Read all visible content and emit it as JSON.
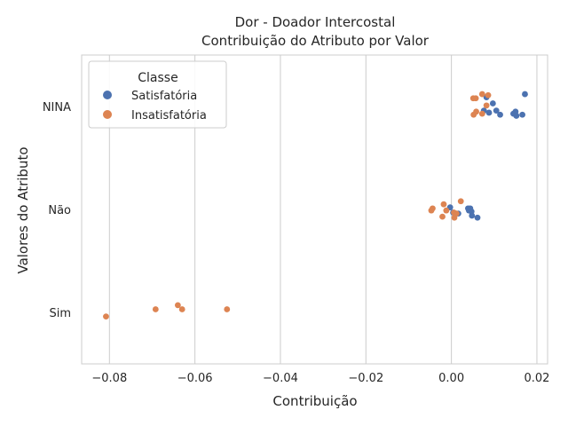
{
  "chart_data": {
    "type": "scatter",
    "title": "Dor - Doador Intercostal",
    "subtitle": "Contribuição do Atributo por Valor",
    "xlabel": "Contribuição",
    "ylabel": "Valores do Atributo",
    "xlim": [
      -0.0865,
      0.0225
    ],
    "xticks": [
      "−0.08",
      "−0.06",
      "−0.04",
      "−0.02",
      "0.00",
      "0.02"
    ],
    "xtick_values": [
      -0.08,
      -0.06,
      -0.04,
      -0.02,
      0.0,
      0.02
    ],
    "categories": [
      "NINA",
      "Não",
      "Sim"
    ],
    "grid": "x",
    "legend": {
      "title": "Classe",
      "position": "top-left",
      "entries": [
        "Satisfatória",
        "Insatisfatória"
      ]
    },
    "colors": {
      "Satisfatória": "#4c72b0",
      "Insatisfatória": "#dd8452"
    },
    "series": [
      {
        "name": "Satisfatória",
        "color": "#4c72b0",
        "points": [
          {
            "x": 0.0172,
            "y": "NINA",
            "j": -0.12
          },
          {
            "x": 0.0082,
            "y": "NINA",
            "j": -0.09
          },
          {
            "x": 0.0097,
            "y": "NINA",
            "j": -0.03
          },
          {
            "x": 0.0076,
            "y": "NINA",
            "j": 0.04
          },
          {
            "x": 0.0088,
            "y": "NINA",
            "j": 0.06
          },
          {
            "x": 0.0105,
            "y": "NINA",
            "j": 0.04
          },
          {
            "x": 0.0114,
            "y": "NINA",
            "j": 0.08
          },
          {
            "x": 0.0145,
            "y": "NINA",
            "j": 0.07
          },
          {
            "x": 0.015,
            "y": "NINA",
            "j": 0.05
          },
          {
            "x": 0.0152,
            "y": "NINA",
            "j": 0.09
          },
          {
            "x": 0.0166,
            "y": "NINA",
            "j": 0.08
          },
          {
            "x": -0.0003,
            "y": "Não",
            "j": -0.02
          },
          {
            "x": 0.0039,
            "y": "Não",
            "j": -0.01
          },
          {
            "x": 0.0044,
            "y": "Não",
            "j": -0.01
          },
          {
            "x": 0.0041,
            "y": "Não",
            "j": 0.01
          },
          {
            "x": 0.0047,
            "y": "Não",
            "j": 0.02
          },
          {
            "x": 0.0004,
            "y": "Não",
            "j": 0.03
          },
          {
            "x": 0.0016,
            "y": "Não",
            "j": 0.04
          },
          {
            "x": 0.0048,
            "y": "Não",
            "j": 0.06
          },
          {
            "x": 0.0061,
            "y": "Não",
            "j": 0.08
          }
        ]
      },
      {
        "name": "Insatisfatória",
        "color": "#dd8452",
        "points": [
          {
            "x": 0.0072,
            "y": "NINA",
            "j": -0.12
          },
          {
            "x": 0.0086,
            "y": "NINA",
            "j": -0.11
          },
          {
            "x": 0.0051,
            "y": "NINA",
            "j": -0.08
          },
          {
            "x": 0.0057,
            "y": "NINA",
            "j": -0.08
          },
          {
            "x": 0.0082,
            "y": "NINA",
            "j": -0.01
          },
          {
            "x": 0.0058,
            "y": "NINA",
            "j": 0.05
          },
          {
            "x": 0.0072,
            "y": "NINA",
            "j": 0.07
          },
          {
            "x": 0.0052,
            "y": "NINA",
            "j": 0.08
          },
          {
            "x": 0.0022,
            "y": "Não",
            "j": -0.08
          },
          {
            "x": -0.0018,
            "y": "Não",
            "j": -0.05
          },
          {
            "x": -0.0044,
            "y": "Não",
            "j": -0.01
          },
          {
            "x": -0.0047,
            "y": "Não",
            "j": 0.01
          },
          {
            "x": -0.0012,
            "y": "Não",
            "j": 0.01
          },
          {
            "x": 0.0006,
            "y": "Não",
            "j": 0.03
          },
          {
            "x": 0.0012,
            "y": "Não",
            "j": 0.04
          },
          {
            "x": -0.0021,
            "y": "Não",
            "j": 0.07
          },
          {
            "x": 0.0007,
            "y": "Não",
            "j": 0.08
          },
          {
            "x": -0.064,
            "y": "Sim",
            "j": -0.07
          },
          {
            "x": -0.0692,
            "y": "Sim",
            "j": -0.03
          },
          {
            "x": -0.063,
            "y": "Sim",
            "j": -0.03
          },
          {
            "x": -0.0525,
            "y": "Sim",
            "j": -0.03
          },
          {
            "x": -0.0808,
            "y": "Sim",
            "j": 0.04
          }
        ]
      }
    ]
  }
}
